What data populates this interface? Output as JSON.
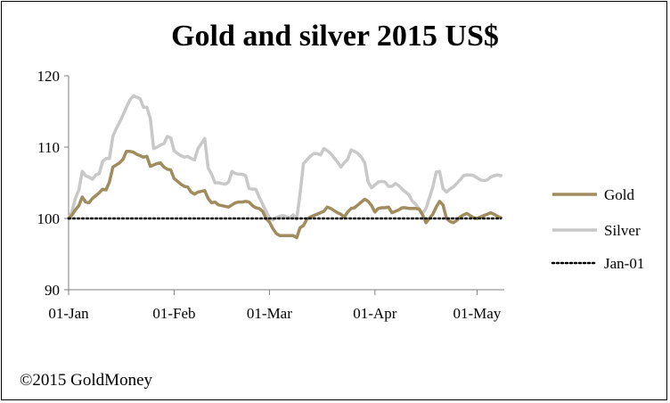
{
  "chart_data": {
    "type": "line",
    "title": "Gold and silver 2015 US$",
    "ylim": [
      90,
      120
    ],
    "yticks": [
      "90",
      "100",
      "110",
      "120"
    ],
    "xticks": [
      "01-Jan",
      "01-Feb",
      "01-Mar",
      "01-Apr",
      "01-May"
    ],
    "xtick_days": [
      0,
      31,
      59,
      90,
      120
    ],
    "xlim_days": [
      0,
      128
    ],
    "grid": false,
    "legend_position": "right",
    "series": [
      {
        "name": "Gold",
        "color": "#a08c5e",
        "style": "solid",
        "x": [
          0,
          1,
          2,
          3,
          4,
          5,
          6,
          7,
          8,
          9,
          10,
          11,
          12,
          13,
          14,
          15,
          16,
          17,
          18,
          19,
          20,
          21,
          22,
          23,
          24,
          25,
          26,
          27,
          28,
          29,
          30,
          31,
          32,
          33,
          34,
          35,
          36,
          37,
          38,
          39,
          40,
          41,
          42,
          43,
          44,
          45,
          46,
          47,
          48,
          49,
          50,
          51,
          52,
          53,
          54,
          55,
          56,
          57,
          58,
          59,
          60,
          61,
          62,
          63,
          64,
          65,
          66,
          67,
          68,
          69,
          70,
          71,
          72,
          73,
          74,
          75,
          76,
          77,
          78,
          79,
          80,
          81,
          82,
          83,
          84,
          85,
          86,
          87,
          88,
          89,
          90,
          91,
          92,
          93,
          94,
          95,
          96,
          97,
          98,
          99,
          100,
          101,
          102,
          103,
          104,
          105,
          106,
          107,
          108,
          109,
          110,
          111,
          112,
          113,
          114,
          115,
          116,
          117,
          118,
          119,
          120,
          121,
          122,
          123,
          124,
          125,
          126,
          127
        ],
        "y": [
          100,
          100.5,
          101.2,
          101.8,
          103.0,
          102.3,
          102.2,
          102.8,
          103.2,
          103.6,
          104.1,
          104.0,
          105.1,
          107.2,
          107.5,
          107.8,
          108.3,
          109.4,
          109.4,
          109.3,
          109.0,
          108.8,
          108.6,
          108.7,
          107.3,
          107.5,
          107.7,
          107.8,
          107.2,
          106.9,
          106.8,
          105.6,
          105.2,
          104.8,
          104.5,
          104.4,
          103.7,
          103.4,
          103.7,
          103.8,
          103.9,
          102.8,
          102.2,
          102.3,
          101.9,
          101.8,
          101.7,
          101.6,
          101.9,
          102.2,
          102.3,
          102.3,
          102.4,
          102.3,
          101.8,
          101.5,
          101.4,
          101.0,
          100.0,
          99.5,
          98.6,
          97.9,
          97.6,
          97.6,
          97.6,
          97.6,
          97.6,
          97.3,
          98.7,
          99.0,
          99.9,
          100.2,
          100.4,
          100.6,
          100.8,
          101.0,
          101.6,
          101.4,
          101.1,
          100.8,
          100.6,
          100.2,
          100.9,
          101.4,
          101.5,
          101.9,
          102.3,
          102.7,
          102.4,
          101.8,
          100.9,
          101.4,
          101.5,
          101.5,
          101.6,
          100.8,
          101.0,
          101.2,
          101.5,
          101.5,
          101.4,
          101.4,
          101.4,
          101.3,
          100.5,
          99.4,
          100.0,
          100.6,
          101.6,
          102.4,
          101.9,
          100.0,
          99.6,
          99.4,
          99.7,
          100.2,
          100.5,
          100.7,
          100.4,
          100.1,
          100.0,
          100.2,
          100.4,
          100.6,
          100.8,
          100.6,
          100.3,
          100.1
        ]
      },
      {
        "name": "Silver",
        "color": "#c8c8c8",
        "style": "solid",
        "x": [
          0,
          1,
          2,
          3,
          4,
          5,
          6,
          7,
          8,
          9,
          10,
          11,
          12,
          13,
          14,
          15,
          16,
          17,
          18,
          19,
          20,
          21,
          22,
          23,
          24,
          25,
          26,
          27,
          28,
          29,
          30,
          31,
          32,
          33,
          34,
          35,
          36,
          37,
          38,
          39,
          40,
          41,
          42,
          43,
          44,
          45,
          46,
          47,
          48,
          49,
          50,
          51,
          52,
          53,
          54,
          55,
          56,
          57,
          58,
          59,
          60,
          61,
          62,
          63,
          64,
          65,
          66,
          67,
          68,
          69,
          70,
          71,
          72,
          73,
          74,
          75,
          76,
          77,
          78,
          79,
          80,
          81,
          82,
          83,
          84,
          85,
          86,
          87,
          88,
          89,
          90,
          91,
          92,
          93,
          94,
          95,
          96,
          97,
          98,
          99,
          100,
          101,
          102,
          103,
          104,
          105,
          106,
          107,
          108,
          109,
          110,
          111,
          112,
          113,
          114,
          115,
          116,
          117,
          118,
          119,
          120,
          121,
          122,
          123,
          124,
          125,
          126,
          127
        ],
        "y": [
          100,
          101.0,
          102.8,
          104.0,
          106.6,
          106.0,
          105.8,
          105.5,
          106.1,
          106.3,
          108.0,
          108.4,
          108.4,
          111.5,
          112.6,
          113.5,
          114.5,
          115.6,
          116.6,
          117.2,
          117.0,
          116.8,
          115.6,
          115.6,
          114.0,
          109.8,
          110.0,
          110.3,
          110.5,
          111.5,
          111.3,
          109.5,
          109.1,
          108.8,
          108.6,
          108.7,
          108.4,
          108.2,
          109.8,
          110.5,
          111.2,
          107.1,
          106.2,
          105.0,
          105.0,
          104.9,
          104.8,
          105.1,
          106.6,
          106.3,
          106.2,
          106.2,
          106.0,
          104.2,
          104.1,
          104.1,
          103.0,
          102.0,
          101.0,
          100.1,
          99.8,
          100.1,
          100.3,
          100.4,
          100.2,
          100.1,
          100.5,
          99.9,
          103.5,
          107.7,
          108.2,
          108.7,
          109.1,
          109.1,
          108.9,
          109.8,
          109.5,
          109.1,
          108.5,
          107.9,
          107.2,
          107.8,
          108.3,
          109.6,
          109.4,
          109.1,
          108.6,
          107.8,
          105.1,
          104.3,
          104.7,
          105.1,
          105.2,
          105.1,
          104.5,
          104.5,
          104.9,
          104.6,
          104.1,
          103.7,
          103.3,
          102.4,
          102.0,
          101.3,
          100.7,
          101.4,
          102.9,
          104.4,
          106.5,
          106.6,
          104.2,
          103.7,
          104.1,
          104.4,
          104.9,
          105.4,
          106.0,
          106.1,
          106.1,
          106.0,
          105.7,
          105.4,
          105.3,
          105.4,
          105.8,
          106.0,
          106.1,
          106.0
        ]
      },
      {
        "name": "Jan-01",
        "color": "#000000",
        "style": "dotted",
        "x": [
          0,
          127
        ],
        "y": [
          100,
          100
        ]
      }
    ]
  },
  "footer": {
    "copyright": "©2015 GoldMoney"
  }
}
